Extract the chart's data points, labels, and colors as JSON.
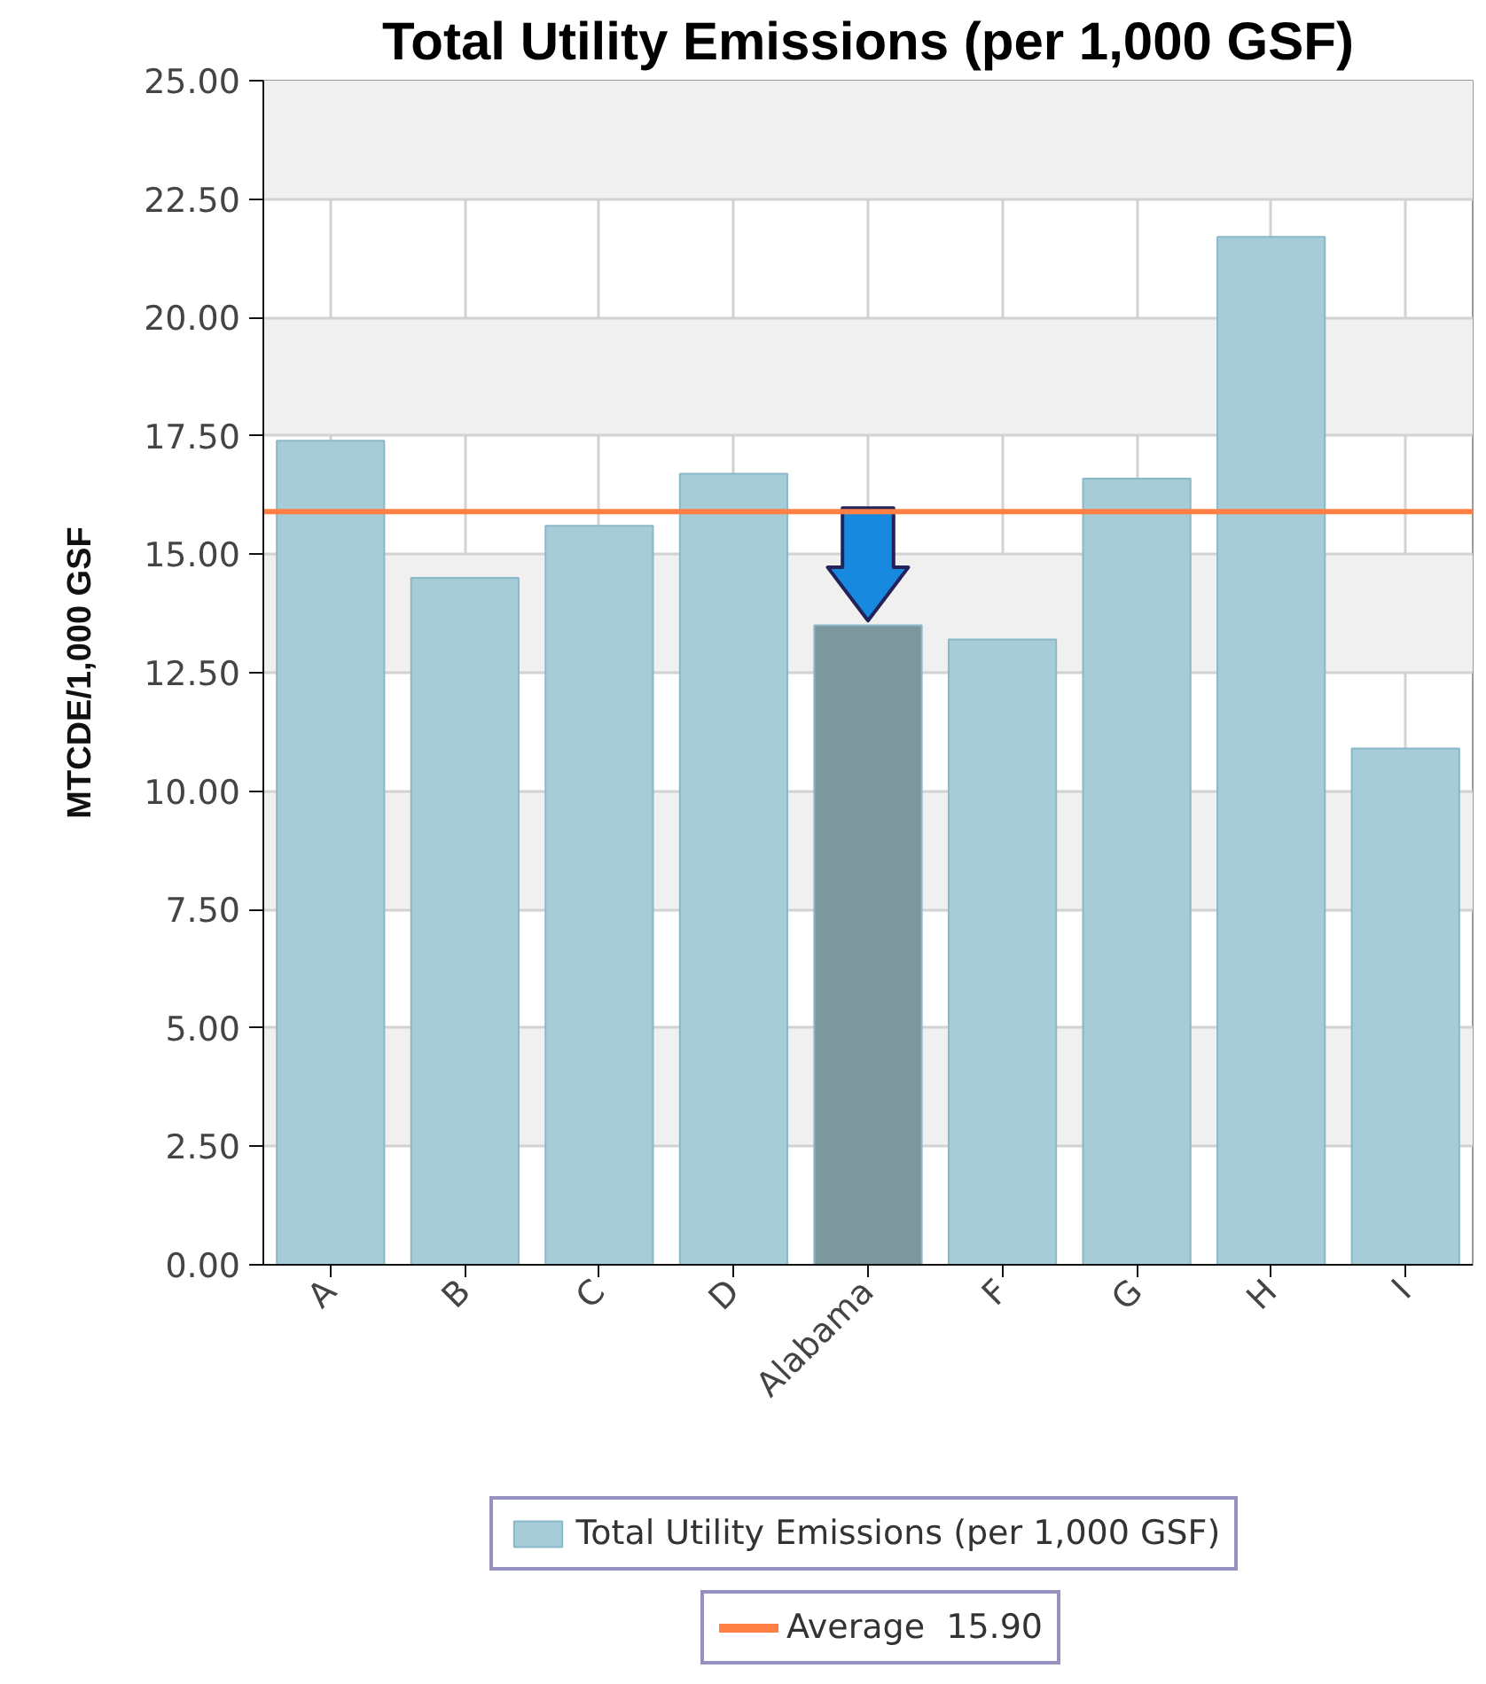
{
  "chart_data": {
    "type": "bar",
    "title": "Total Utility Emissions (per 1,000 GSF)",
    "ylabel": "MTCDE/1,000 GSF",
    "categories": [
      "A",
      "B",
      "C",
      "D",
      "Alabama",
      "F",
      "G",
      "H",
      "I"
    ],
    "series": [
      {
        "name": "Total Utility Emissions (per 1,000 GSF)",
        "colors": [
          "#a6ccd8",
          "#a6ccd8",
          "#a6ccd8",
          "#a6ccd8",
          "#7d979e",
          "#a6ccd8",
          "#a6ccd8",
          "#a6ccd8",
          "#a6ccd8"
        ],
        "values": [
          17.4,
          14.5,
          15.6,
          16.7,
          13.5,
          13.2,
          16.6,
          21.7,
          10.9
        ]
      }
    ],
    "ylim": [
      0,
      25
    ],
    "yticks": [
      {
        "value": 0,
        "label": "0.00"
      },
      {
        "value": 2.5,
        "label": "2.50"
      },
      {
        "value": 5,
        "label": "5.00"
      },
      {
        "value": 7.5,
        "label": "7.50"
      },
      {
        "value": 10,
        "label": "10.00"
      },
      {
        "value": 12.5,
        "label": "12.50"
      },
      {
        "value": 15,
        "label": "15.00"
      },
      {
        "value": 17.5,
        "label": "17.50"
      },
      {
        "value": 20,
        "label": "20.00"
      },
      {
        "value": 22.5,
        "label": "22.50"
      },
      {
        "value": 25,
        "label": "25.00"
      }
    ],
    "grid": true,
    "legend": "bottom",
    "ref_lines": [
      {
        "axis": "y",
        "value": 15.9,
        "label": "Average  15.90",
        "color": "#ff7f45"
      }
    ]
  }
}
